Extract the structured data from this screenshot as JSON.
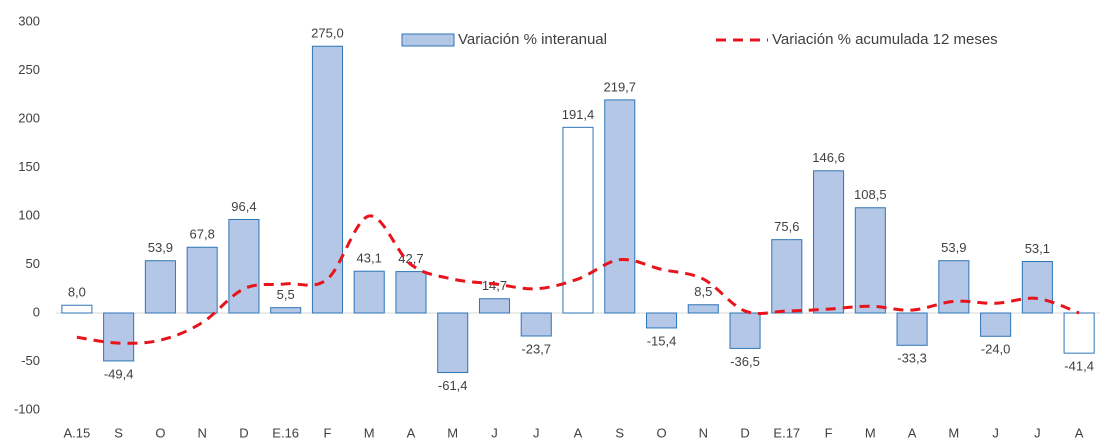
{
  "chart_data": {
    "type": "bar_line",
    "categories": [
      "A.15",
      "S",
      "O",
      "N",
      "D",
      "E.16",
      "F",
      "M",
      "A",
      "M",
      "J",
      "J",
      "A",
      "S",
      "O",
      "N",
      "D",
      "E.17",
      "F",
      "M",
      "A",
      "M",
      "J",
      "J",
      "A"
    ],
    "series": [
      {
        "name": "Variación % interanual",
        "type": "bar",
        "color": "#b4c7e7",
        "edge_color": "#2e75b6",
        "colors": [
          "#ffffff",
          "#b4c7e7",
          "#b4c7e7",
          "#b4c7e7",
          "#b4c7e7",
          "#b4c7e7",
          "#b4c7e7",
          "#b4c7e7",
          "#b4c7e7",
          "#b4c7e7",
          "#b4c7e7",
          "#b4c7e7",
          "#ffffff",
          "#b4c7e7",
          "#b4c7e7",
          "#b4c7e7",
          "#b4c7e7",
          "#b4c7e7",
          "#b4c7e7",
          "#b4c7e7",
          "#b4c7e7",
          "#b4c7e7",
          "#b4c7e7",
          "#b4c7e7",
          "#ffffff"
        ],
        "values": [
          8.0,
          -49.4,
          53.9,
          67.8,
          96.4,
          5.5,
          275.0,
          43.1,
          42.7,
          -61.4,
          14.7,
          -23.7,
          191.4,
          219.7,
          -15.4,
          8.5,
          -36.5,
          75.6,
          146.6,
          108.5,
          -33.3,
          53.9,
          -24.0,
          53.1,
          -41.4
        ],
        "value_labels": [
          "8,0",
          "-49,4",
          "53,9",
          "67,8",
          "96,4",
          "5,5",
          "275,0",
          "43,1",
          "42,7",
          "-61,4",
          "14,7",
          "-23,7",
          "191,4",
          "219,7",
          "-15,4",
          "8,5",
          "-36,5",
          "75,6",
          "146,6",
          "108,5",
          "-33,3",
          "53,9",
          "-24,0",
          "53,1",
          "-41,4"
        ]
      },
      {
        "name": "Variación % acumulada 12 meses",
        "type": "line",
        "color": "#e8141c",
        "dashed": true,
        "smooth": true,
        "values": [
          -25,
          -31,
          -28,
          -10,
          25,
          30,
          35,
          100,
          50,
          35,
          30,
          25,
          35,
          55,
          45,
          35,
          2,
          2,
          4,
          7,
          3,
          12,
          10,
          15,
          0
        ]
      }
    ],
    "ylim": [
      -100,
      300
    ],
    "yticks": [
      -100,
      -50,
      0,
      50,
      100,
      150,
      200,
      250,
      300
    ],
    "grid": false,
    "legend": "top"
  }
}
